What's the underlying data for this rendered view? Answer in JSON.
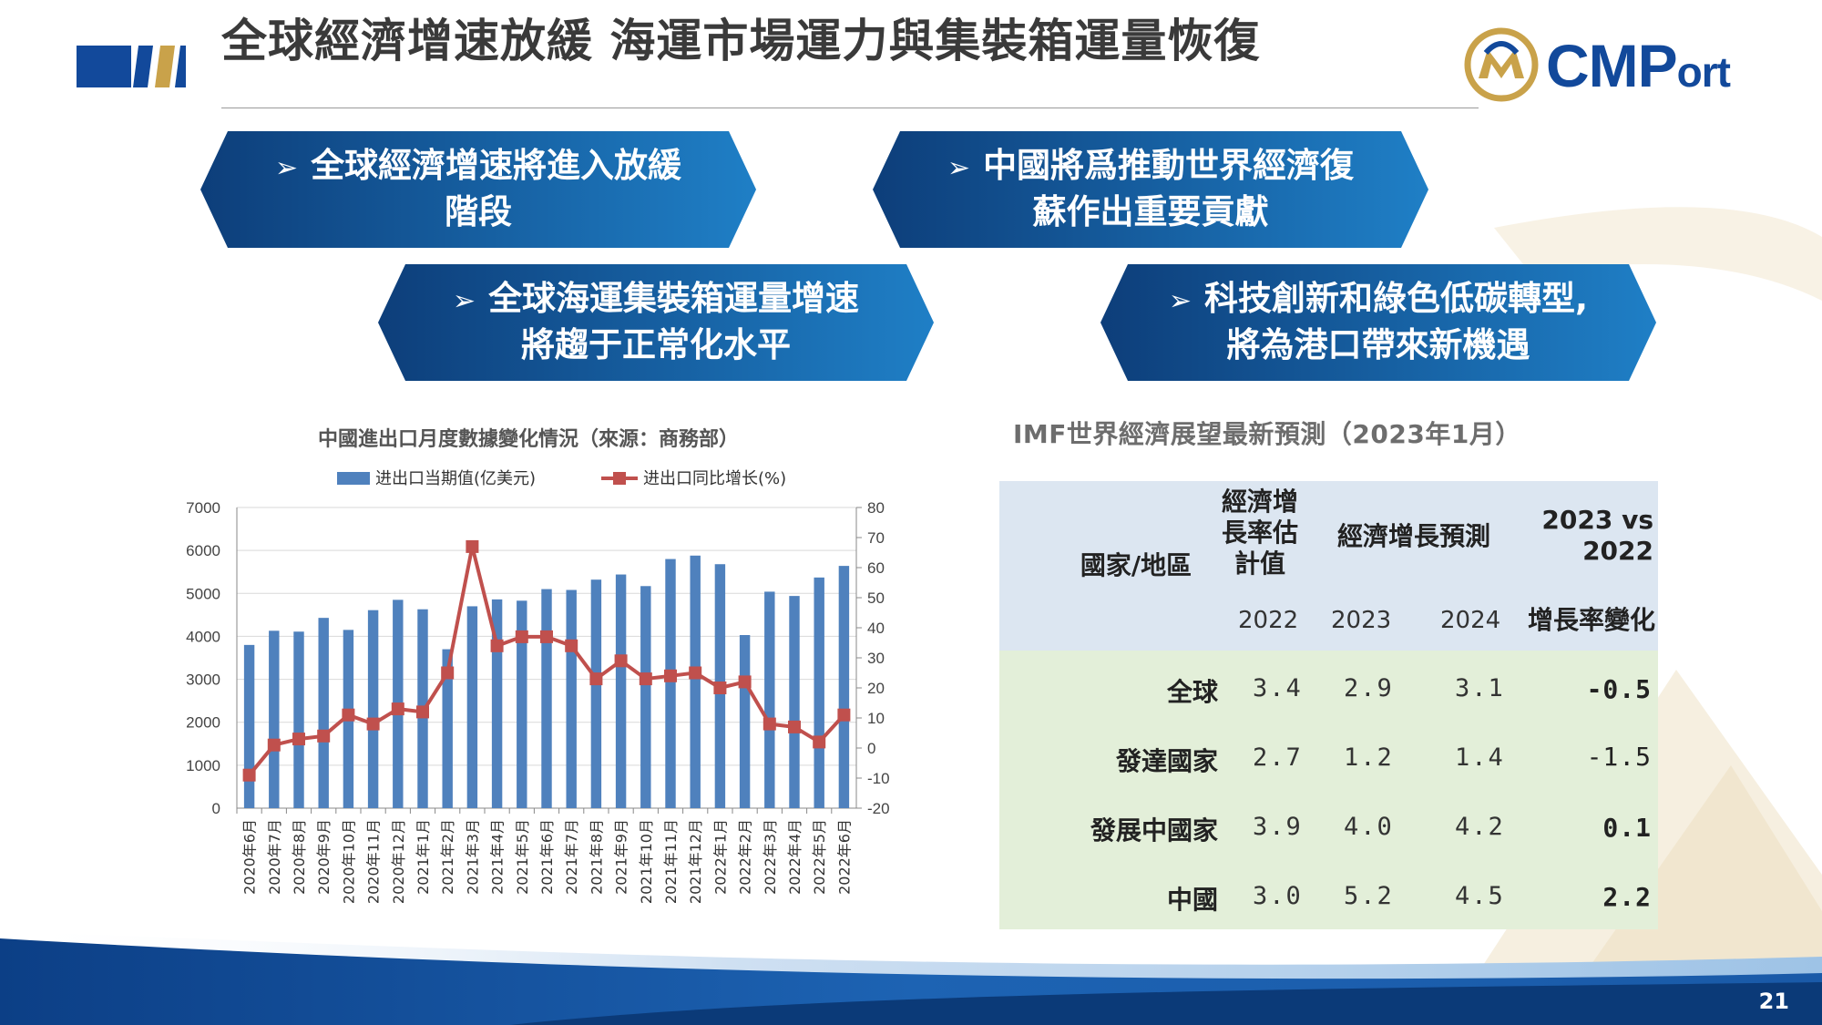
{
  "header": {
    "title": "全球經濟增速放緩 海運市場運力與集裝箱運量恢復",
    "logo_text_main": "CMP",
    "logo_text_tail": "ort"
  },
  "banners": [
    {
      "line1": "全球經濟增速將進入放緩",
      "line2": "階段"
    },
    {
      "line1": "中國將爲推動世界經濟復",
      "line2": "蘇作出重要貢獻"
    },
    {
      "line1": "全球海運集裝箱運量增速",
      "line2": "將趨于正常化水平"
    },
    {
      "line1": "科技創新和綠色低碳轉型,",
      "line2": "將為港口帶來新機遇"
    }
  ],
  "banner_arrow": "➢",
  "chart_data": {
    "type": "bar+line",
    "title": "中國進出口月度數據變化情況（來源：商務部）",
    "categories": [
      "2020年6月",
      "2020年7月",
      "2020年8月",
      "2020年9月",
      "2020年10月",
      "2020年11月",
      "2020年12月",
      "2021年1月",
      "2021年2月",
      "2021年3月",
      "2021年4月",
      "2021年5月",
      "2021年6月",
      "2021年7月",
      "2021年8月",
      "2021年9月",
      "2021年10月",
      "2021年11月",
      "2021年12月",
      "2022年1月",
      "2022年2月",
      "2022年3月",
      "2022年4月",
      "2022年5月",
      "2022年6月"
    ],
    "series": [
      {
        "name": "进出口当期值(亿美元)",
        "axis": "left",
        "kind": "bar",
        "color": "#4f81bd",
        "values": [
          3800,
          4130,
          4110,
          4430,
          4150,
          4610,
          4850,
          4630,
          3700,
          4700,
          4860,
          4830,
          5100,
          5080,
          5320,
          5440,
          5170,
          5800,
          5880,
          5680,
          4030,
          5040,
          4940,
          5370,
          5640
        ]
      },
      {
        "name": "进出口同比增长(%)",
        "axis": "right",
        "kind": "line",
        "color": "#c0504d",
        "values": [
          -9,
          1,
          3,
          4,
          11,
          8,
          13,
          12,
          25,
          67,
          34,
          37,
          37,
          34,
          23,
          29,
          23,
          24,
          25,
          20,
          22,
          8,
          7,
          2,
          11
        ]
      }
    ],
    "y_left": {
      "min": 0,
      "max": 7000,
      "ticks": [
        "0",
        "1000",
        "2000",
        "3000",
        "4000",
        "5000",
        "6000",
        "7000"
      ]
    },
    "y_right": {
      "min": -20,
      "max": 80,
      "ticks": [
        "-20",
        "-10",
        "0",
        "10",
        "20",
        "30",
        "40",
        "50",
        "60",
        "70",
        "80"
      ]
    },
    "legend_position": "top",
    "grid": true
  },
  "table": {
    "title": "IMF世界經濟展望最新預測（2023年1月）",
    "header": {
      "region": "國家/地區",
      "est_line1": "經濟增",
      "est_line2": "長率估",
      "est_line3": "計值",
      "forecast": "經濟增長預測",
      "vs_line1": "2023 vs",
      "vs_line2": "2022",
      "y2022": "2022",
      "y2023": "2023",
      "y2024": "2024",
      "change": "增長率變化"
    },
    "rows": [
      {
        "region": "全球",
        "v2022": "3.4",
        "v2023": "2.9",
        "v2024": "3.1",
        "change": "-0.5"
      },
      {
        "region": "發達國家",
        "v2022": "2.7",
        "v2023": "1.2",
        "v2024": "1.4",
        "change": "-1.5"
      },
      {
        "region": "發展中國家",
        "v2022": "3.9",
        "v2023": "4.0",
        "v2024": "4.2",
        "change": "0.1"
      },
      {
        "region": "中國",
        "v2022": "3.0",
        "v2023": "5.2",
        "v2024": "4.5",
        "change": "2.2"
      }
    ]
  },
  "footer": {
    "page_number": "21"
  },
  "colors": {
    "brand_blue": "#12499b",
    "gold": "#c9a24a",
    "banner_dark": "#0d3e7a",
    "banner_light": "#1f7fc6"
  }
}
